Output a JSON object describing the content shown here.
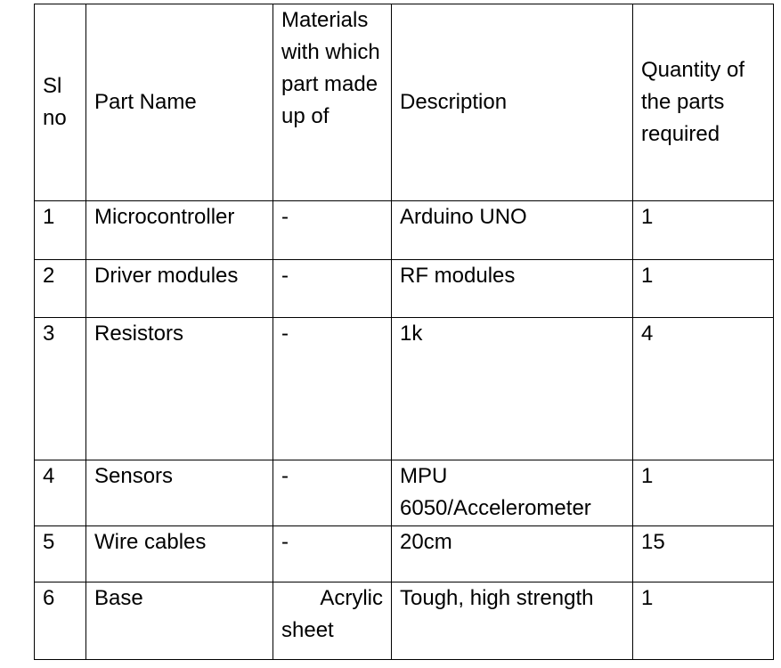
{
  "table": {
    "headers": {
      "sl_no": "Sl no",
      "part_name": "Part Name",
      "materials": "Materials with which part made up of",
      "description": "Description",
      "quantity": "Quantity of the parts required"
    },
    "rows": [
      {
        "sl": "1",
        "part": "Microcontroller",
        "material": "-",
        "description": "Arduino UNO",
        "quantity": "1"
      },
      {
        "sl": "2",
        "part": "Driver modules",
        "material": "-",
        "description": "RF modules",
        "quantity": "1"
      },
      {
        "sl": "3",
        "part": "Resistors",
        "material": "-",
        "description": "1k",
        "quantity": "4"
      },
      {
        "sl": "4",
        "part": "Sensors",
        "material": "-",
        "description": "MPU 6050/Accelerometer",
        "quantity": "1"
      },
      {
        "sl": "5",
        "part": "Wire cables",
        "material": "-",
        "description": "20cm",
        "quantity": "15"
      },
      {
        "sl": "6",
        "part": "Base",
        "material_line1": "Acrylic",
        "material_line2": "sheet",
        "description": "Tough, high strength",
        "quantity": "1"
      }
    ]
  }
}
